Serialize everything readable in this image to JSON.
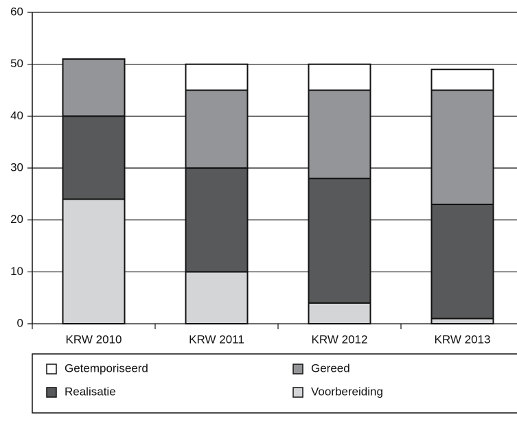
{
  "chart_data": {
    "type": "stacked_bar",
    "categories": [
      "KRW 2010",
      "KRW 2011",
      "KRW 2012",
      "KRW 2013"
    ],
    "series": [
      {
        "name": "Voorbereiding",
        "color": "#d4d5d7",
        "values": [
          24,
          10,
          4,
          1
        ]
      },
      {
        "name": "Realisatie",
        "color": "#58595b",
        "values": [
          16,
          20,
          24,
          22
        ]
      },
      {
        "name": "Gereed",
        "color": "#939598",
        "values": [
          11,
          15,
          17,
          22
        ]
      },
      {
        "name": "Getemporiseerd",
        "color": "#ffffff",
        "values": [
          0,
          5,
          5,
          4
        ]
      }
    ],
    "ylim": [
      0,
      60
    ],
    "yticks": [
      0,
      10,
      20,
      30,
      40,
      50,
      60
    ],
    "grid": true
  }
}
